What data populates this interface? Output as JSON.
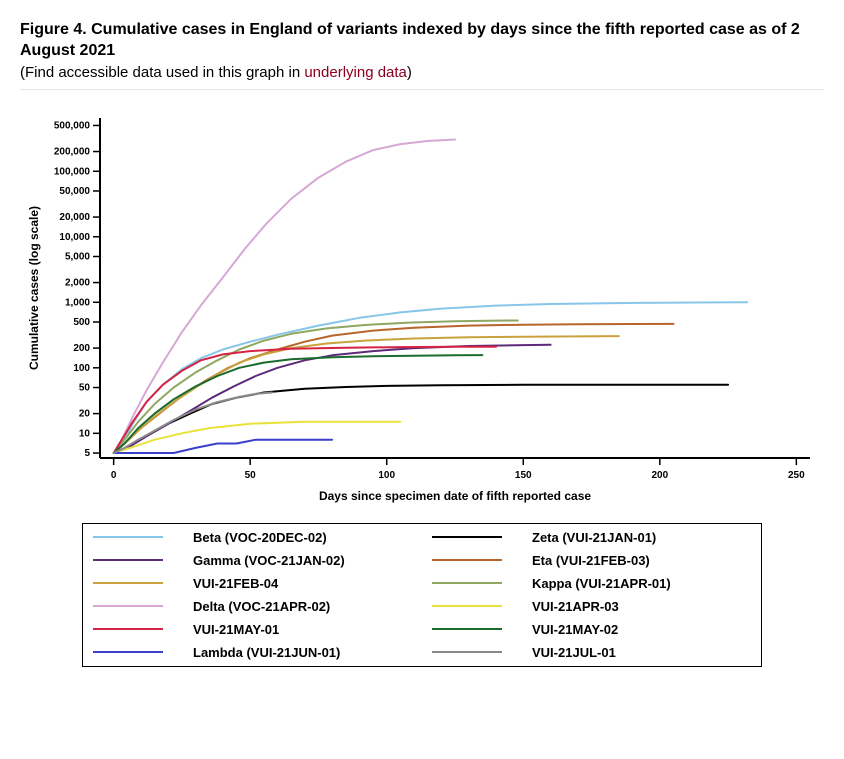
{
  "title": "Figure 4. Cumulative cases in England of variants indexed by days since the fifth reported case as of 2 August 2021",
  "subtitle_prefix": "(Find accessible data used in this graph in ",
  "subtitle_link": "underlying data",
  "subtitle_suffix": ")",
  "chart": {
    "type": "line",
    "y_scale": "log",
    "x_label": "Days since specimen date of fifth reported case",
    "y_label": "Cumulative cases (log scale)",
    "x_ticks": [
      0,
      50,
      100,
      150,
      200,
      250
    ],
    "y_ticks": [
      5,
      10,
      20,
      50,
      100,
      200,
      500,
      1000,
      2000,
      5000,
      10000,
      20000,
      50000,
      100000,
      200000,
      500000
    ],
    "y_tick_labels": [
      "5",
      "10",
      "20",
      "50",
      "100",
      "200",
      "500",
      "1,000",
      "2,000",
      "5,000",
      "10,000",
      "20,000",
      "50,000",
      "100,000",
      "200,000",
      "500,000"
    ],
    "xlim": [
      -5,
      255
    ],
    "ylim_log": [
      4.2,
      650000
    ],
    "plot_bg": "#ffffff",
    "axis_color": "#000000",
    "tick_fontsize": 10,
    "label_fontsize": 12,
    "line_width": 2,
    "series": [
      {
        "name": "Beta (VOC-20DEC-02)",
        "color": "#87c6e8",
        "data": [
          [
            0,
            5
          ],
          [
            3,
            7
          ],
          [
            7,
            14
          ],
          [
            12,
            30
          ],
          [
            18,
            55
          ],
          [
            25,
            95
          ],
          [
            32,
            140
          ],
          [
            40,
            190
          ],
          [
            50,
            250
          ],
          [
            60,
            320
          ],
          [
            75,
            440
          ],
          [
            90,
            580
          ],
          [
            105,
            700
          ],
          [
            120,
            800
          ],
          [
            140,
            890
          ],
          [
            160,
            940
          ],
          [
            180,
            970
          ],
          [
            200,
            985
          ],
          [
            220,
            995
          ],
          [
            232,
            1000
          ]
        ]
      },
      {
        "name": "Zeta (VUI-21JAN-01)",
        "color": "#000000",
        "data": [
          [
            0,
            5
          ],
          [
            5,
            6
          ],
          [
            12,
            9
          ],
          [
            20,
            14
          ],
          [
            28,
            20
          ],
          [
            36,
            28
          ],
          [
            45,
            35
          ],
          [
            55,
            42
          ],
          [
            70,
            48
          ],
          [
            85,
            51
          ],
          [
            100,
            53
          ],
          [
            120,
            54
          ],
          [
            150,
            55
          ],
          [
            180,
            55
          ],
          [
            210,
            55
          ],
          [
            225,
            55
          ]
        ]
      },
      {
        "name": "Gamma (VOC-21JAN-02)",
        "color": "#5d2a7a",
        "data": [
          [
            0,
            5
          ],
          [
            5,
            6
          ],
          [
            12,
            9
          ],
          [
            20,
            14
          ],
          [
            28,
            22
          ],
          [
            36,
            35
          ],
          [
            44,
            52
          ],
          [
            52,
            75
          ],
          [
            60,
            100
          ],
          [
            70,
            130
          ],
          [
            80,
            155
          ],
          [
            95,
            180
          ],
          [
            110,
            200
          ],
          [
            130,
            215
          ],
          [
            150,
            222
          ],
          [
            160,
            225
          ]
        ]
      },
      {
        "name": "Eta (VUI-21FEB-03)",
        "color": "#b8652b",
        "data": [
          [
            0,
            5
          ],
          [
            4,
            7
          ],
          [
            10,
            12
          ],
          [
            18,
            22
          ],
          [
            26,
            40
          ],
          [
            34,
            65
          ],
          [
            42,
            100
          ],
          [
            50,
            140
          ],
          [
            60,
            190
          ],
          [
            70,
            250
          ],
          [
            80,
            310
          ],
          [
            95,
            370
          ],
          [
            110,
            410
          ],
          [
            130,
            440
          ],
          [
            150,
            455
          ],
          [
            170,
            462
          ],
          [
            190,
            466
          ],
          [
            205,
            468
          ]
        ]
      },
      {
        "name": "VUI-21FEB-04",
        "color": "#c9a23d",
        "data": [
          [
            0,
            5
          ],
          [
            4,
            7
          ],
          [
            9,
            11
          ],
          [
            15,
            18
          ],
          [
            22,
            30
          ],
          [
            30,
            50
          ],
          [
            38,
            80
          ],
          [
            46,
            120
          ],
          [
            55,
            160
          ],
          [
            65,
            200
          ],
          [
            78,
            235
          ],
          [
            92,
            260
          ],
          [
            110,
            280
          ],
          [
            130,
            292
          ],
          [
            150,
            298
          ],
          [
            170,
            302
          ],
          [
            185,
            305
          ]
        ]
      },
      {
        "name": "Kappa (VUI-21APR-01)",
        "color": "#8fa861",
        "data": [
          [
            0,
            5
          ],
          [
            4,
            8
          ],
          [
            9,
            15
          ],
          [
            15,
            28
          ],
          [
            22,
            50
          ],
          [
            30,
            85
          ],
          [
            38,
            130
          ],
          [
            46,
            190
          ],
          [
            55,
            260
          ],
          [
            65,
            330
          ],
          [
            78,
            400
          ],
          [
            92,
            450
          ],
          [
            108,
            490
          ],
          [
            125,
            515
          ],
          [
            140,
            525
          ],
          [
            148,
            528
          ]
        ]
      },
      {
        "name": "Delta (VOC-21APR-02)",
        "color": "#d6a8d6",
        "data": [
          [
            0,
            5
          ],
          [
            3,
            8
          ],
          [
            7,
            18
          ],
          [
            12,
            45
          ],
          [
            18,
            120
          ],
          [
            25,
            350
          ],
          [
            32,
            900
          ],
          [
            40,
            2400
          ],
          [
            48,
            6500
          ],
          [
            56,
            16000
          ],
          [
            65,
            38000
          ],
          [
            75,
            80000
          ],
          [
            85,
            140000
          ],
          [
            95,
            210000
          ],
          [
            105,
            260000
          ],
          [
            115,
            290000
          ],
          [
            125,
            305000
          ]
        ]
      },
      {
        "name": "VUI-21APR-03",
        "color": "#e8e23a",
        "data": [
          [
            0,
            5
          ],
          [
            6,
            6
          ],
          [
            15,
            8
          ],
          [
            25,
            10
          ],
          [
            35,
            12
          ],
          [
            50,
            14
          ],
          [
            70,
            15
          ],
          [
            90,
            15
          ],
          [
            105,
            15
          ]
        ]
      },
      {
        "name": "VUI-21MAY-01",
        "color": "#d62345",
        "data": [
          [
            0,
            5
          ],
          [
            3,
            8
          ],
          [
            7,
            15
          ],
          [
            12,
            30
          ],
          [
            18,
            55
          ],
          [
            25,
            90
          ],
          [
            32,
            130
          ],
          [
            40,
            160
          ],
          [
            50,
            180
          ],
          [
            65,
            195
          ],
          [
            85,
            203
          ],
          [
            105,
            207
          ],
          [
            125,
            209
          ],
          [
            140,
            210
          ]
        ]
      },
      {
        "name": "VUI-21MAY-02",
        "color": "#1a6b2e",
        "data": [
          [
            0,
            5
          ],
          [
            4,
            7
          ],
          [
            9,
            12
          ],
          [
            15,
            20
          ],
          [
            22,
            33
          ],
          [
            30,
            52
          ],
          [
            38,
            75
          ],
          [
            46,
            100
          ],
          [
            55,
            120
          ],
          [
            65,
            135
          ],
          [
            80,
            145
          ],
          [
            95,
            150
          ],
          [
            110,
            153
          ],
          [
            125,
            155
          ],
          [
            135,
            156
          ]
        ]
      },
      {
        "name": "Lambda (VUI-21JUN-01)",
        "color": "#3b3fc9",
        "data": [
          [
            0,
            5
          ],
          [
            8,
            5
          ],
          [
            15,
            5
          ],
          [
            22,
            5
          ],
          [
            30,
            6
          ],
          [
            38,
            7
          ],
          [
            45,
            7
          ],
          [
            52,
            8
          ],
          [
            62,
            8
          ],
          [
            72,
            8
          ],
          [
            80,
            8
          ]
        ]
      },
      {
        "name": "VUI-21JUL-01",
        "color": "#8a8a8a",
        "data": [
          [
            0,
            5
          ],
          [
            4,
            6
          ],
          [
            9,
            8
          ],
          [
            15,
            11
          ],
          [
            22,
            16
          ],
          [
            30,
            23
          ],
          [
            38,
            30
          ],
          [
            46,
            36
          ],
          [
            52,
            40
          ],
          [
            58,
            42
          ]
        ]
      }
    ],
    "legend_order": [
      [
        "Beta (VOC-20DEC-02)",
        "Zeta (VUI-21JAN-01)"
      ],
      [
        "Gamma (VOC-21JAN-02)",
        "Eta (VUI-21FEB-03)"
      ],
      [
        "VUI-21FEB-04",
        "Kappa (VUI-21APR-01)"
      ],
      [
        "Delta (VOC-21APR-02)",
        "VUI-21APR-03"
      ],
      [
        "VUI-21MAY-01",
        "VUI-21MAY-02"
      ],
      [
        "Lambda (VUI-21JUN-01)",
        "VUI-21JUL-01"
      ]
    ]
  }
}
